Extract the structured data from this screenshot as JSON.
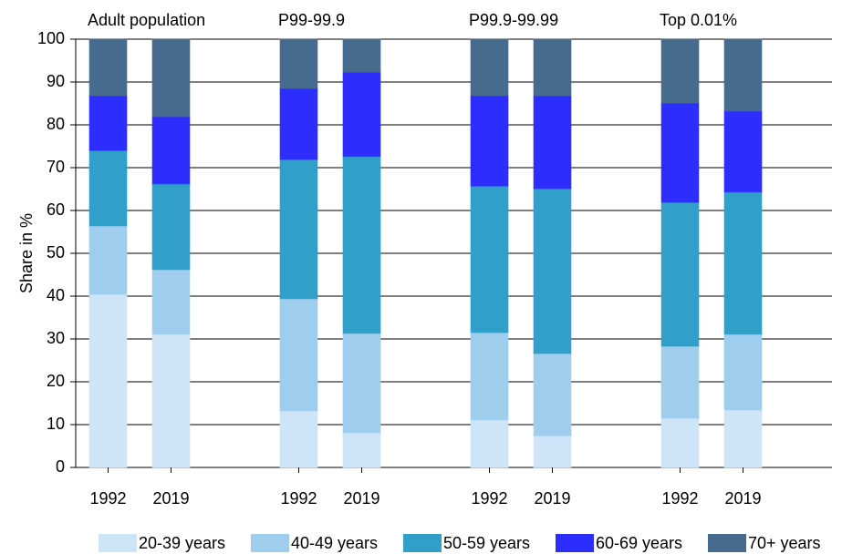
{
  "chart_data": {
    "type": "stacked_bar",
    "y_label": "Share in %",
    "groups": [
      "Adult population",
      "P99-99.9",
      "P99.9-99.99",
      "Top 0.01%"
    ],
    "categories": [
      "1992",
      "2019",
      "1992",
      "2019",
      "1992",
      "2019",
      "1992",
      "2019"
    ],
    "series": [
      {
        "name": "20-39 years",
        "color": "#cde5f6",
        "values": [
          40.4,
          31.1,
          13.2,
          8.1,
          11.1,
          7.4,
          11.5,
          13.4
        ]
      },
      {
        "name": "40-49 years",
        "color": "#9ecdee",
        "values": [
          16.0,
          15.1,
          26.2,
          23.2,
          20.4,
          19.2,
          16.8,
          17.7
        ]
      },
      {
        "name": "50-59 years",
        "color": "#309fc9",
        "values": [
          17.6,
          20.0,
          32.5,
          41.3,
          34.2,
          38.5,
          33.6,
          33.2
        ]
      },
      {
        "name": "60-69 years",
        "color": "#2d2dfd",
        "values": [
          12.8,
          15.7,
          16.6,
          19.7,
          21.1,
          21.7,
          23.2,
          18.9
        ]
      },
      {
        "name": "70+ years",
        "color": "#466b8f",
        "values": [
          13.2,
          18.1,
          11.5,
          7.7,
          13.2,
          13.2,
          14.9,
          16.8
        ]
      }
    ],
    "ylim": [
      0,
      100
    ],
    "yticks": [
      0,
      10,
      20,
      30,
      40,
      50,
      60,
      70,
      80,
      90,
      100
    ],
    "grid": true
  }
}
